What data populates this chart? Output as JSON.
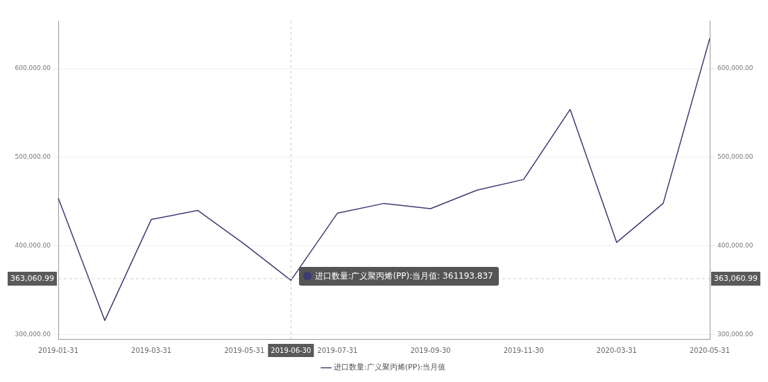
{
  "chart_data": {
    "type": "line",
    "categories": [
      "2019-01-31",
      null,
      "2019-03-31",
      null,
      "2019-05-31",
      "2019-06-30",
      "2019-07-31",
      null,
      "2019-09-30",
      null,
      "2019-11-30",
      null,
      "2020-03-31",
      null,
      "2020-05-31"
    ],
    "series": [
      {
        "name": "进口数量:广义聚丙烯(PP):当月值",
        "color": "#3c3b73",
        "values": [
          454000,
          316000,
          430000,
          440000,
          402000,
          361193.837,
          437000,
          448000,
          442000,
          463000,
          475000,
          554000,
          404000,
          448000,
          634000
        ]
      }
    ],
    "ylim": [
      295000,
      654000
    ],
    "yticks": [
      {
        "value": 300000,
        "label": "300,000.00"
      },
      {
        "value": 400000,
        "label": "400,000.00"
      },
      {
        "value": 500000,
        "label": "500,000.00"
      },
      {
        "value": 600000,
        "label": "600,000.00"
      }
    ],
    "y2lim": [
      295000,
      654000
    ],
    "y2ticks": [
      {
        "value": 300000,
        "label": "300,000.00"
      },
      {
        "value": 400000,
        "label": "400,000.00"
      },
      {
        "value": 500000,
        "label": "500,000.00"
      },
      {
        "value": 600000,
        "label": "600,000.00"
      }
    ],
    "ref_lines": [
      {
        "axis": "x",
        "value": "2019-06-30",
        "line_style": "dashed",
        "color": "#cccccc"
      },
      {
        "axis": "y",
        "value": 363060.99,
        "label": "363,060.99",
        "line_style": "dashed",
        "color": "#cccccc"
      }
    ],
    "annotations": [
      "进口数量:广义聚丙烯(PP):当月值: 361193.837"
    ],
    "grid": "y",
    "legend": "bottom",
    "marker": "none",
    "line_style": "solid"
  }
}
